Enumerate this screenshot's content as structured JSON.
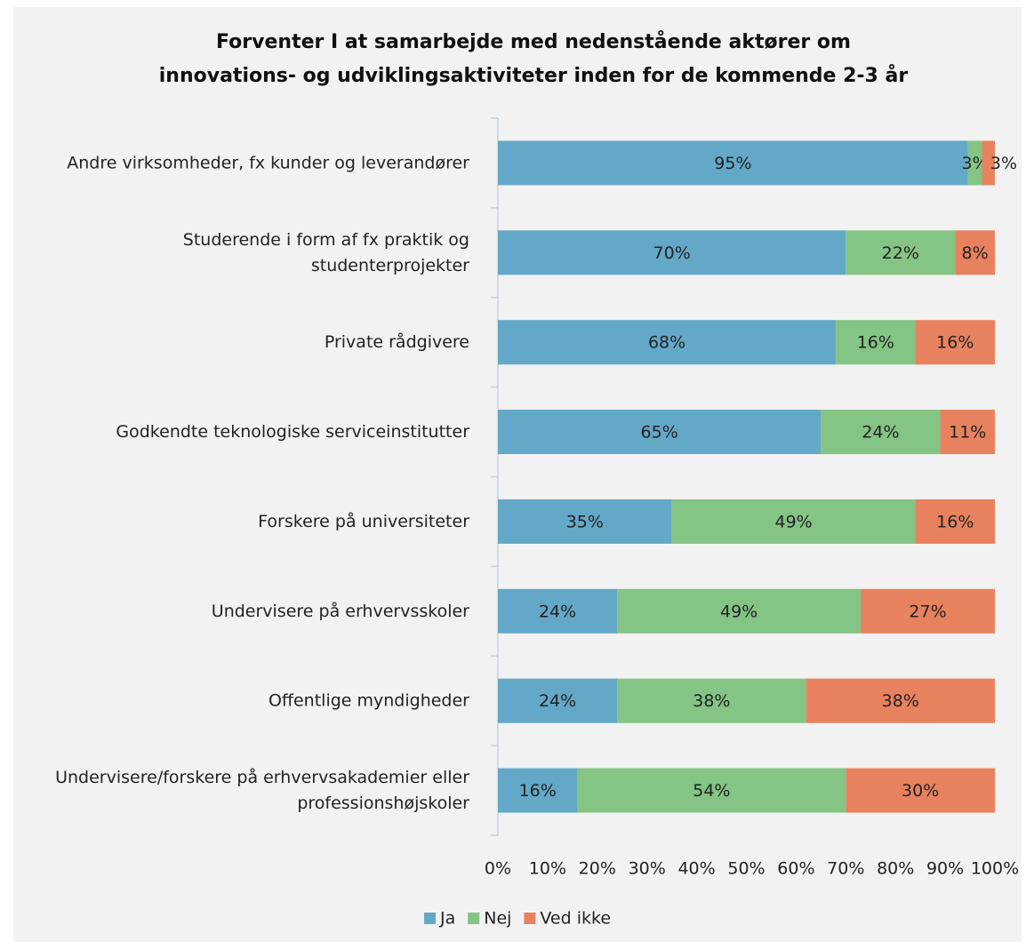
{
  "chart_data": {
    "type": "stacked_barh",
    "title": [
      "Forventer I at samarbejde med nedenstående aktører om",
      "innovations- og udviklingsaktiviteter inden for de kommende 2-3 år"
    ],
    "categories": [
      "Andre virksomheder, fx kunder og leverandører",
      "Studerende i form af fx praktik og studenterprojekter",
      "Private rådgivere",
      "Godkendte teknologiske serviceinstitutter",
      "Forskere på universiteter",
      "Undervisere på erhvervsskoler",
      "Offentlige myndigheder",
      "Undervisere/forskere på erhvervsakademier eller professionshøjskoler"
    ],
    "series": [
      {
        "name": "Ja",
        "color": "#64a8c8",
        "values": [
          94.6,
          70,
          68,
          65,
          35,
          24,
          24,
          16
        ],
        "value_labels": [
          "95%",
          "70%",
          "68%",
          "65%",
          "35%",
          "24%",
          "24%",
          "16%"
        ]
      },
      {
        "name": "Nej",
        "color": "#84c484",
        "values": [
          2.8,
          22,
          16,
          24,
          49,
          49,
          38,
          54
        ],
        "value_labels": [
          "3%",
          "22%",
          "16%",
          "24%",
          "49%",
          "49%",
          "38%",
          "54%"
        ]
      },
      {
        "name": "Ved ikke",
        "color": "#e8825e",
        "values": [
          2.6,
          8,
          16,
          11,
          16,
          27,
          38,
          30
        ],
        "value_labels": [
          "3%",
          "8%",
          "16%",
          "11%",
          "16%",
          "27%",
          "38%",
          "30%"
        ]
      }
    ],
    "xlim": [
      0,
      100
    ],
    "xticks": [
      {
        "value": 0,
        "label": "0%"
      },
      {
        "value": 10,
        "label": "10%"
      },
      {
        "value": 20,
        "label": "20%"
      },
      {
        "value": 30,
        "label": "30%"
      },
      {
        "value": 40,
        "label": "40%"
      },
      {
        "value": 50,
        "label": "50%"
      },
      {
        "value": 60,
        "label": "60%"
      },
      {
        "value": 70,
        "label": "70%"
      },
      {
        "value": 80,
        "label": "80%"
      },
      {
        "value": 90,
        "label": "90%"
      },
      {
        "value": 100,
        "label": "100%"
      }
    ],
    "legend": "bottom"
  }
}
